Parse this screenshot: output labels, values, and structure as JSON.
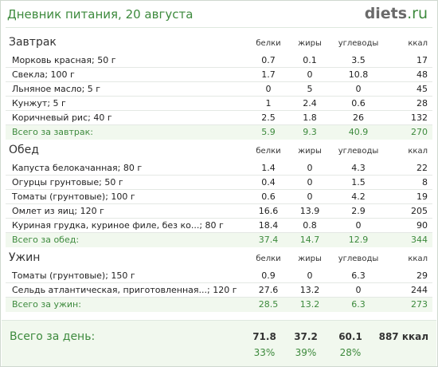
{
  "header": {
    "title": "Дневник питания, 20 августа",
    "logo_main": "diets",
    "logo_tld": ".ru"
  },
  "columns": {
    "protein": "белки",
    "fat": "жиры",
    "carbs": "углеводы",
    "kcal": "ккал"
  },
  "meals": [
    {
      "title": "Завтрак",
      "items": [
        {
          "name": "Морковь красная; 50 г",
          "protein": "0.7",
          "fat": "0.1",
          "carbs": "3.5",
          "kcal": "17"
        },
        {
          "name": "Свекла; 100 г",
          "protein": "1.7",
          "fat": "0",
          "carbs": "10.8",
          "kcal": "48"
        },
        {
          "name": "Льняное масло; 5 г",
          "protein": "0",
          "fat": "5",
          "carbs": "0",
          "kcal": "45"
        },
        {
          "name": "Кунжут; 5 г",
          "protein": "1",
          "fat": "2.4",
          "carbs": "0.6",
          "kcal": "28"
        },
        {
          "name": "Коричневый рис; 40 г",
          "protein": "2.5",
          "fat": "1.8",
          "carbs": "26",
          "kcal": "132"
        }
      ],
      "total": {
        "name": "Всего за завтрак:",
        "protein": "5.9",
        "fat": "9.3",
        "carbs": "40.9",
        "kcal": "270"
      }
    },
    {
      "title": "Обед",
      "items": [
        {
          "name": "Капуста белокачанная; 80 г",
          "protein": "1.4",
          "fat": "0",
          "carbs": "4.3",
          "kcal": "22"
        },
        {
          "name": "Огурцы грунтовые; 50 г",
          "protein": "0.4",
          "fat": "0",
          "carbs": "1.5",
          "kcal": "8"
        },
        {
          "name": "Томаты (грунтовые); 100 г",
          "protein": "0.6",
          "fat": "0",
          "carbs": "4.2",
          "kcal": "19"
        },
        {
          "name": "Омлет из яиц; 120 г",
          "protein": "16.6",
          "fat": "13.9",
          "carbs": "2.9",
          "kcal": "205"
        },
        {
          "name": "Куриная грудка, куриное филе, без ко...; 80 г",
          "protein": "18.4",
          "fat": "0.8",
          "carbs": "0",
          "kcal": "90"
        }
      ],
      "total": {
        "name": "Всего за обед:",
        "protein": "37.4",
        "fat": "14.7",
        "carbs": "12.9",
        "kcal": "344"
      }
    },
    {
      "title": "Ужин",
      "items": [
        {
          "name": "Томаты (грунтовые); 150 г",
          "protein": "0.9",
          "fat": "0",
          "carbs": "6.3",
          "kcal": "29"
        },
        {
          "name": "Сельдь атлантическая, приготовленная...; 120 г",
          "protein": "27.6",
          "fat": "13.2",
          "carbs": "0",
          "kcal": "244"
        }
      ],
      "total": {
        "name": "Всего за ужин:",
        "protein": "28.5",
        "fat": "13.2",
        "carbs": "6.3",
        "kcal": "273"
      }
    }
  ],
  "day_total": {
    "label": "Всего за день:",
    "protein": "71.8",
    "fat": "37.2",
    "carbs": "60.1",
    "kcal": "887 ккал",
    "protein_pct": "33%",
    "fat_pct": "39%",
    "carbs_pct": "28%"
  }
}
